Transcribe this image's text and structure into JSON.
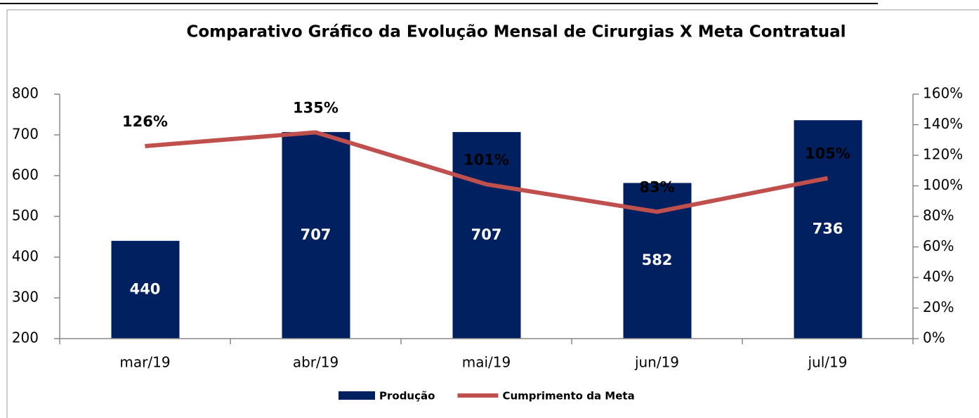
{
  "chart_data": {
    "type": "bar",
    "title": "Comparativo Gráfico da Evolução Mensal de Cirurgias X Meta Contratual",
    "categories": [
      "mar/19",
      "abr/19",
      "mai/19",
      "jun/19",
      "jul/19"
    ],
    "series": [
      {
        "name": "Produção",
        "type": "bar",
        "color": "#002060",
        "values": [
          440,
          707,
          707,
          582,
          736
        ]
      },
      {
        "name": "Cumprimento da Meta",
        "type": "line",
        "axis": "y2",
        "color": "#c0504d",
        "values": [
          126,
          135,
          101,
          83,
          105
        ],
        "value_labels": [
          "126%",
          "135%",
          "101%",
          "83%",
          "105%"
        ]
      }
    ],
    "ylim": [
      200,
      800
    ],
    "yticks": [
      200,
      300,
      400,
      500,
      600,
      700,
      800
    ],
    "y2lim": [
      0,
      160
    ],
    "y2ticks": [
      {
        "value": 0,
        "label": "0%"
      },
      {
        "value": 20,
        "label": "20%"
      },
      {
        "value": 40,
        "label": "40%"
      },
      {
        "value": 60,
        "label": "60%"
      },
      {
        "value": 80,
        "label": "80%"
      },
      {
        "value": 100,
        "label": "100%"
      },
      {
        "value": 120,
        "label": "120%"
      },
      {
        "value": 140,
        "label": "140%"
      },
      {
        "value": 160,
        "label": "160%"
      }
    ],
    "grid": false,
    "legend": "bottom"
  }
}
